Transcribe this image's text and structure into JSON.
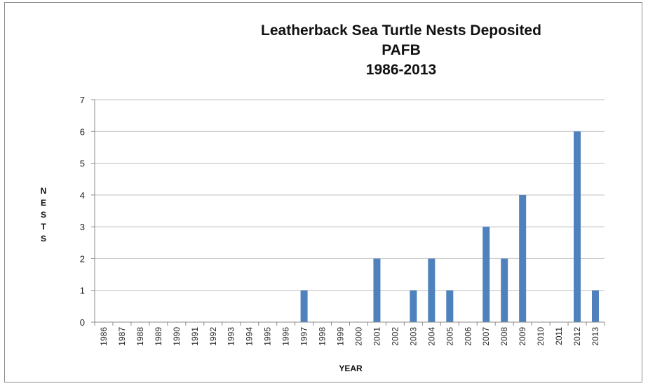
{
  "chart_data": {
    "type": "bar",
    "title_lines": [
      "Leatherback Sea Turtle Nests Deposited",
      "PAFB",
      "1986-2013"
    ],
    "xlabel": "YEAR",
    "ylabel": "NESTS",
    "categories": [
      "1986",
      "1987",
      "1988",
      "1989",
      "1990",
      "1991",
      "1992",
      "1993",
      "1994",
      "1995",
      "1996",
      "1997",
      "1998",
      "1999",
      "2000",
      "2001",
      "2002",
      "2003",
      "2004",
      "2005",
      "2006",
      "2007",
      "2008",
      "2009",
      "2010",
      "2011",
      "2012",
      "2013"
    ],
    "values": [
      0,
      0,
      0,
      0,
      0,
      0,
      0,
      0,
      0,
      0,
      0,
      1,
      0,
      0,
      0,
      2,
      0,
      1,
      2,
      1,
      0,
      3,
      2,
      4,
      0,
      0,
      6,
      1
    ],
    "ylim": [
      0,
      7
    ],
    "yticks": [
      "0",
      "1",
      "2",
      "3",
      "4",
      "5",
      "6",
      "7"
    ],
    "grid": true,
    "legend": "none",
    "bar_color": "#4F81BD"
  }
}
